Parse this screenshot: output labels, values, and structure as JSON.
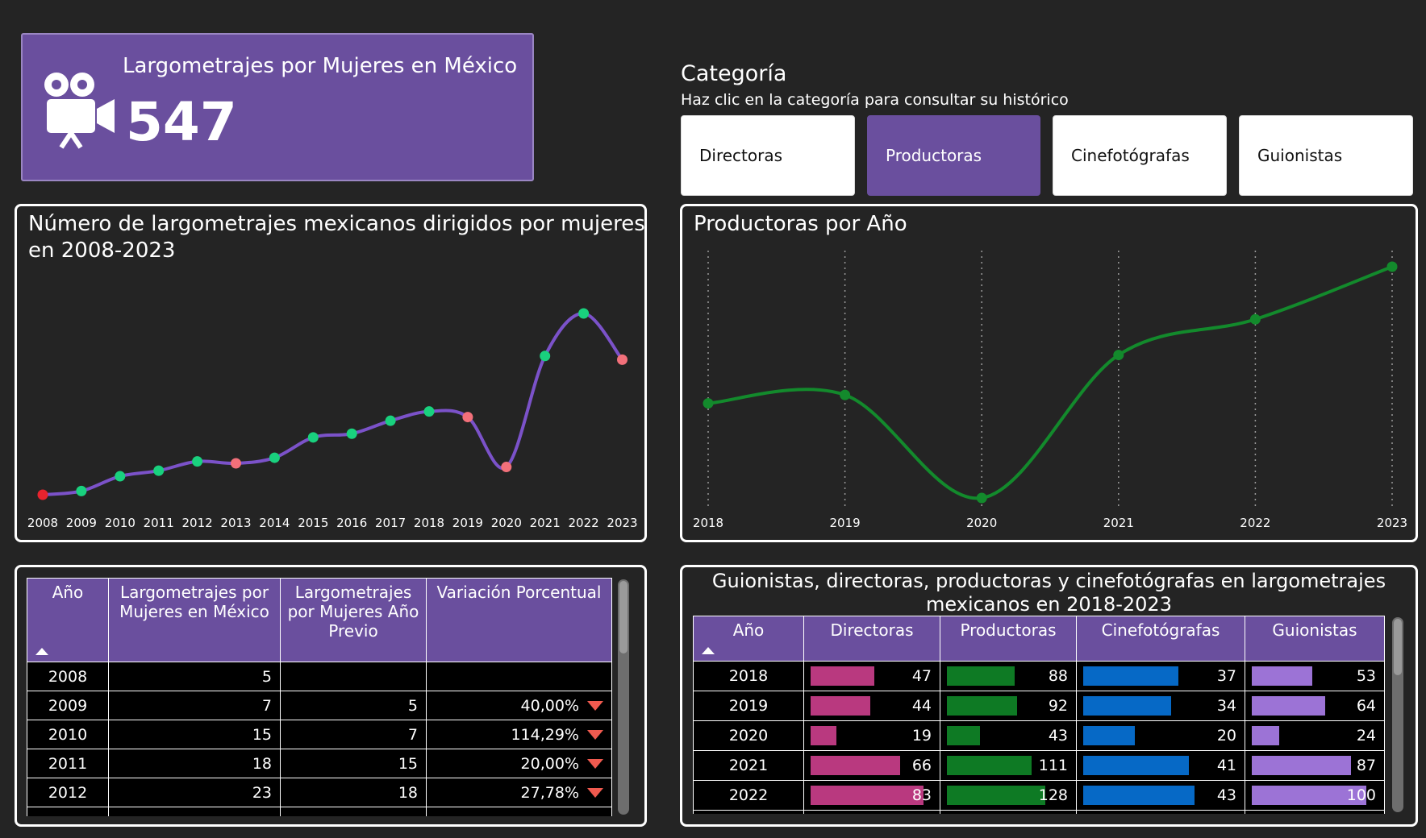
{
  "kpi": {
    "title": "Largometrajes por Mujeres en México",
    "value": "547",
    "icon": "film-camera-icon"
  },
  "category": {
    "title": "Categoría",
    "subtitle": "Haz clic en la categoría para consultar su histórico",
    "buttons": [
      "Directoras",
      "Productoras",
      "Cinefotógrafas",
      "Guionistas"
    ],
    "active": "Productoras"
  },
  "colors": {
    "accent": "#6a4f9e",
    "line_purple": "#7b52c9",
    "line_green": "#138a2c",
    "up_green": "#19d17e",
    "down_red": "#f2707a",
    "first_red": "#e8232e",
    "directoras": "#b9397f",
    "productoras": "#0e7a24",
    "cinefotografas": "#0669c6",
    "guionistas": "#9c73d6",
    "down_arrow": "#f05a4f"
  },
  "chart_data": [
    {
      "type": "line",
      "title": "Número de largometrajes mexicanos dirigidos por mujeres en 2008-2023",
      "x": [
        "2008",
        "2009",
        "2010",
        "2011",
        "2012",
        "2013",
        "2014",
        "2015",
        "2016",
        "2017",
        "2018",
        "2019",
        "2020",
        "2021",
        "2022",
        "2023"
      ],
      "y": [
        5,
        7,
        15,
        18,
        23,
        22,
        25,
        36,
        38,
        45,
        50,
        47,
        20,
        80,
        103,
        78
      ],
      "point_status": [
        "first",
        "up",
        "up",
        "up",
        "up",
        "down",
        "up",
        "up",
        "up",
        "up",
        "up",
        "down",
        "down",
        "up",
        "up",
        "down"
      ],
      "xlabel": "",
      "ylabel": "",
      "grid": false
    },
    {
      "type": "line",
      "title": "Productoras por Año",
      "x": [
        "2018",
        "2019",
        "2020",
        "2021",
        "2022",
        "2023"
      ],
      "y": [
        88,
        92,
        43,
        111,
        128,
        153
      ],
      "xlabel": "",
      "ylabel": "",
      "grid": "vertical-dotted"
    },
    {
      "type": "table",
      "columns": [
        "Año",
        "Largometrajes por Mujeres en México",
        "Largometrajes por Mujeres Año Previo",
        "Variación Porcentual"
      ],
      "rows": [
        [
          "2008",
          "5",
          "",
          ""
        ],
        [
          "2009",
          "7",
          "5",
          "40,00%"
        ],
        [
          "2010",
          "15",
          "7",
          "114,29%"
        ],
        [
          "2011",
          "18",
          "15",
          "20,00%"
        ],
        [
          "2012",
          "23",
          "18",
          "27,78%"
        ]
      ]
    },
    {
      "type": "table",
      "title": "Guionistas, directoras, productoras y cinefotógrafas en largometrajes mexicanos en 2018-2023",
      "columns": [
        "Año",
        "Directoras",
        "Productoras",
        "Cinefotógrafas",
        "Guionistas"
      ],
      "rows": [
        [
          "2018",
          47,
          88,
          37,
          53
        ],
        [
          "2019",
          44,
          92,
          34,
          64
        ],
        [
          "2020",
          19,
          43,
          20,
          24
        ],
        [
          "2021",
          66,
          111,
          41,
          87
        ],
        [
          "2022",
          83,
          128,
          43,
          100
        ]
      ],
      "bar_max": [
        90,
        160,
        60,
        110
      ]
    }
  ]
}
